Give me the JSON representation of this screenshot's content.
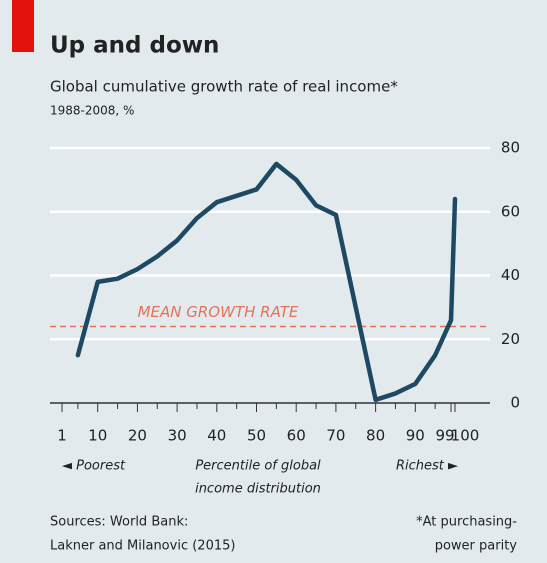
{
  "chart_data": {
    "type": "line",
    "title": "Up and down",
    "subtitle": "Global cumulative growth rate of real income*",
    "subtitle2": "1988-2008, %",
    "x": [
      5,
      10,
      15,
      20,
      25,
      30,
      35,
      40,
      45,
      50,
      55,
      60,
      65,
      70,
      75,
      80,
      85,
      90,
      95,
      99,
      100
    ],
    "values": [
      15,
      38,
      39,
      42,
      46,
      51,
      58,
      63,
      65,
      67,
      75,
      70,
      62,
      59,
      30,
      1,
      3,
      6,
      15,
      26,
      64
    ],
    "color": "#1d4a62",
    "xlim": [
      1,
      100
    ],
    "xticks": [
      1,
      10,
      20,
      30,
      40,
      50,
      60,
      70,
      80,
      90,
      99,
      100
    ],
    "xminorticks": [
      5,
      15,
      25,
      35,
      45,
      55,
      65,
      75,
      85,
      95
    ],
    "ylim": [
      0,
      80
    ],
    "yticks": [
      0,
      20,
      40,
      60,
      80
    ],
    "grid": true,
    "reference_line": {
      "value": 24,
      "label": "MEAN GROWTH RATE",
      "color": "#e2735a"
    },
    "xlabel": [
      "Percentile of global",
      "income distribution"
    ],
    "left_label": "◄ Poorest",
    "right_label": "Richest ►",
    "source": [
      "Sources: World Bank:",
      "Lakner and Milanovic (2015)"
    ],
    "footnote": [
      "*At purchasing-",
      "power parity"
    ]
  }
}
